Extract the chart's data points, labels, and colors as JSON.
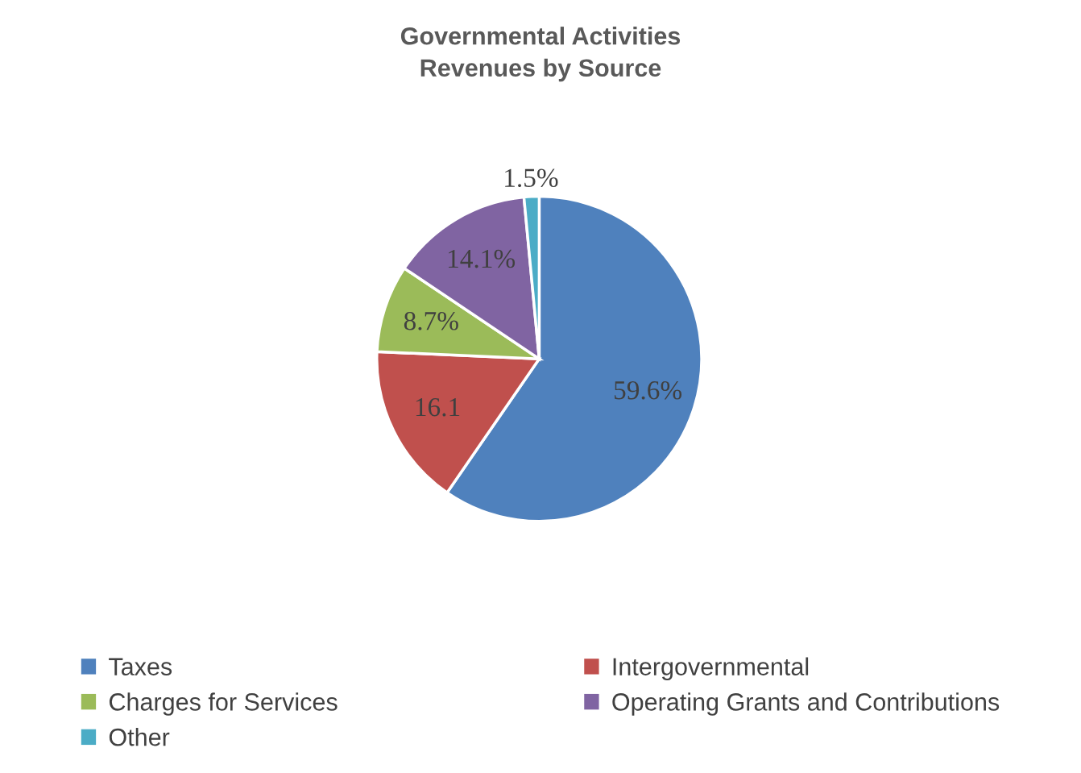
{
  "chart_data": {
    "type": "pie",
    "title": "Governmental Activities\nRevenues by Source",
    "categories": [
      "Taxes",
      "Intergovernmental",
      "Charges for Services",
      "Operating Grants and Contributions",
      "Other"
    ],
    "values": [
      59.6,
      16.1,
      8.7,
      14.1,
      1.5
    ],
    "colors": [
      "#4f81bd",
      "#c0504d",
      "#9bbb59",
      "#8064a2",
      "#4bacc6"
    ],
    "value_labels": [
      "59.6%",
      "16.1",
      "8.7%",
      "14.1%",
      "1.5%"
    ],
    "legend": "bottom"
  }
}
